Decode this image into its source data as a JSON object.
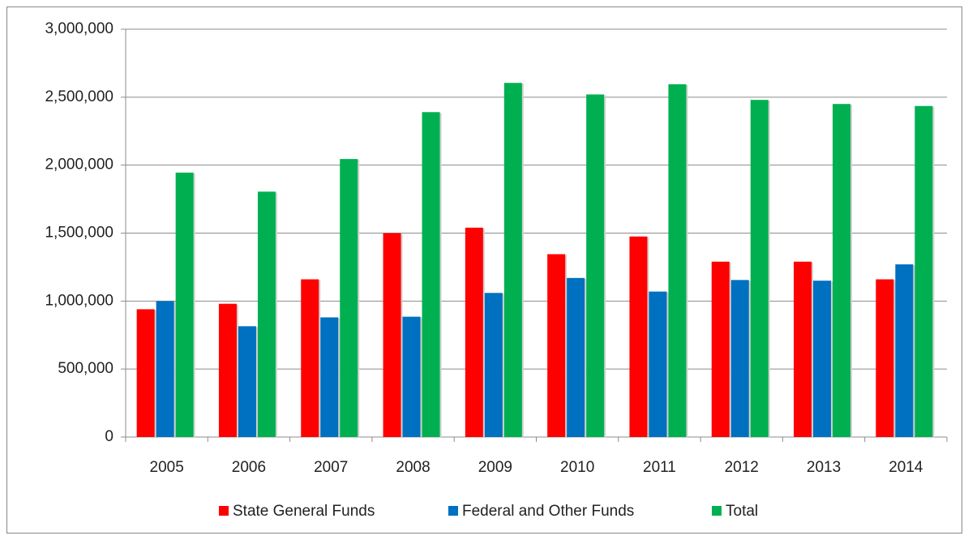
{
  "chart_data": {
    "type": "bar",
    "categories": [
      "2005",
      "2006",
      "2007",
      "2008",
      "2009",
      "2010",
      "2011",
      "2012",
      "2013",
      "2014"
    ],
    "series": [
      {
        "name": "State General Funds",
        "color": "#ff0000",
        "values": [
          940000,
          980000,
          1160000,
          1500000,
          1540000,
          1345000,
          1475000,
          1290000,
          1290000,
          1160000
        ]
      },
      {
        "name": "Federal and Other Funds",
        "color": "#0070c0",
        "values": [
          1000000,
          815000,
          880000,
          885000,
          1060000,
          1170000,
          1070000,
          1155000,
          1150000,
          1270000
        ]
      },
      {
        "name": "Total",
        "color": "#00b050",
        "values": [
          1945000,
          1805000,
          2045000,
          2390000,
          2605000,
          2520000,
          2595000,
          2480000,
          2450000,
          2435000
        ]
      }
    ],
    "ylim": [
      0,
      3000000
    ],
    "yticks": [
      0,
      {
        "value": 500000,
        "label": "500,000"
      },
      {
        "value": 1000000,
        "label": "1,000,000"
      },
      {
        "value": 1500000,
        "label": "1,500,000"
      },
      {
        "value": 2000000,
        "label": "2,000,000"
      },
      {
        "value": 2500000,
        "label": "2,500,000"
      },
      {
        "value": 3000000,
        "label": "3,000,000"
      }
    ],
    "grid": true,
    "legend": "bottom"
  }
}
